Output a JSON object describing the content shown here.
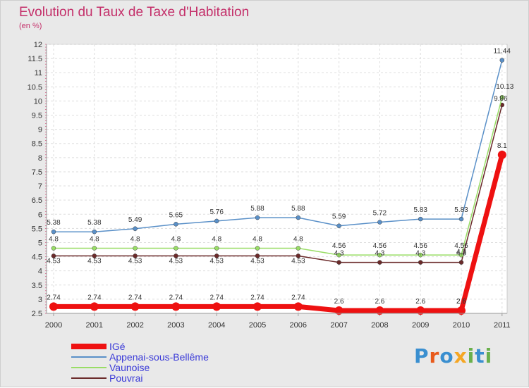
{
  "chart_data": {
    "type": "line",
    "title": "Evolution du Taux de Taxe d'Habitation",
    "subtitle": "(en %)",
    "x": [
      "2000",
      "2001",
      "2002",
      "2003",
      "2004",
      "2005",
      "2006",
      "2007",
      "2008",
      "2009",
      "2010",
      "2011"
    ],
    "ylim": [
      2.5,
      12
    ],
    "yticks": [
      "2.5",
      "3",
      "3.5",
      "4",
      "4.5",
      "5",
      "5.5",
      "6",
      "6.5",
      "7",
      "7.5",
      "8",
      "8.5",
      "9",
      "9.5",
      "10",
      "10.5",
      "11",
      "11.5",
      "12"
    ],
    "grid": true,
    "legend_position": "bottom-left",
    "series": [
      {
        "name": "Pouvrai",
        "color": "#6b2a2a",
        "values": [
          4.53,
          4.53,
          4.53,
          4.53,
          4.53,
          4.53,
          4.53,
          4.3,
          4.3,
          4.3,
          4.3,
          9.86
        ],
        "labels": [
          "",
          "",
          "",
          "",
          "",
          "",
          "",
          "4.3",
          "4.3",
          "4.3",
          "4.3",
          "9.86"
        ]
      },
      {
        "name": "Vaunoise",
        "color": "#99dd66",
        "values": [
          4.8,
          4.8,
          4.8,
          4.8,
          4.8,
          4.8,
          4.8,
          4.56,
          4.56,
          4.56,
          4.56,
          10.13
        ],
        "labels": [
          "4.8",
          "4.8",
          "4.8",
          "4.8",
          "4.8",
          "4.8",
          "4.8",
          "4.56",
          "4.56",
          "4.56",
          "4.56",
          "10.13"
        ]
      },
      {
        "name": "Appenai-sous-Bellême",
        "color": "#5a90c8",
        "values": [
          5.38,
          5.38,
          5.49,
          5.65,
          5.76,
          5.88,
          5.88,
          5.59,
          5.72,
          5.83,
          5.83,
          11.44
        ],
        "labels": [
          "5.38",
          "5.38",
          "5.49",
          "5.65",
          "5.76",
          "5.88",
          "5.88",
          "5.59",
          "5.72",
          "5.83",
          "5.83",
          "11.44"
        ]
      },
      {
        "name": "IGé",
        "color": "#ee1111",
        "values": [
          2.74,
          2.74,
          2.74,
          2.74,
          2.74,
          2.74,
          2.74,
          2.6,
          2.6,
          2.6,
          2.6,
          8.1
        ],
        "labels": [
          "2.74",
          "2.74",
          "2.74",
          "2.74",
          "2.74",
          "2.74",
          "2.74",
          "2.6",
          "2.6",
          "2.6",
          "2.6",
          "8.1"
        ]
      }
    ],
    "extra_labels": [
      "4.53",
      "4.53",
      "4.53",
      "4.53",
      "4.53",
      "4.53",
      "4.53",
      "4.3",
      "2.6"
    ]
  },
  "legend": [
    {
      "label": "IGé",
      "color": "#ee1111",
      "thickness": "thick"
    },
    {
      "label": "Appenai-sous-Bellême",
      "color": "#5a90c8",
      "thickness": "thin"
    },
    {
      "label": "Vaunoise",
      "color": "#99dd66",
      "thickness": "thin"
    },
    {
      "label": "Pouvrai",
      "color": "#6b2a2a",
      "thickness": "thin"
    }
  ],
  "logo": {
    "letters": [
      "P",
      "r",
      "o",
      "x",
      "i",
      "t",
      "i"
    ],
    "colors": [
      "#3a8fd0",
      "#e85a1c",
      "#3a8fd0",
      "#f5a623",
      "#6ab04c",
      "#3a8fd0",
      "#6ab04c"
    ]
  }
}
